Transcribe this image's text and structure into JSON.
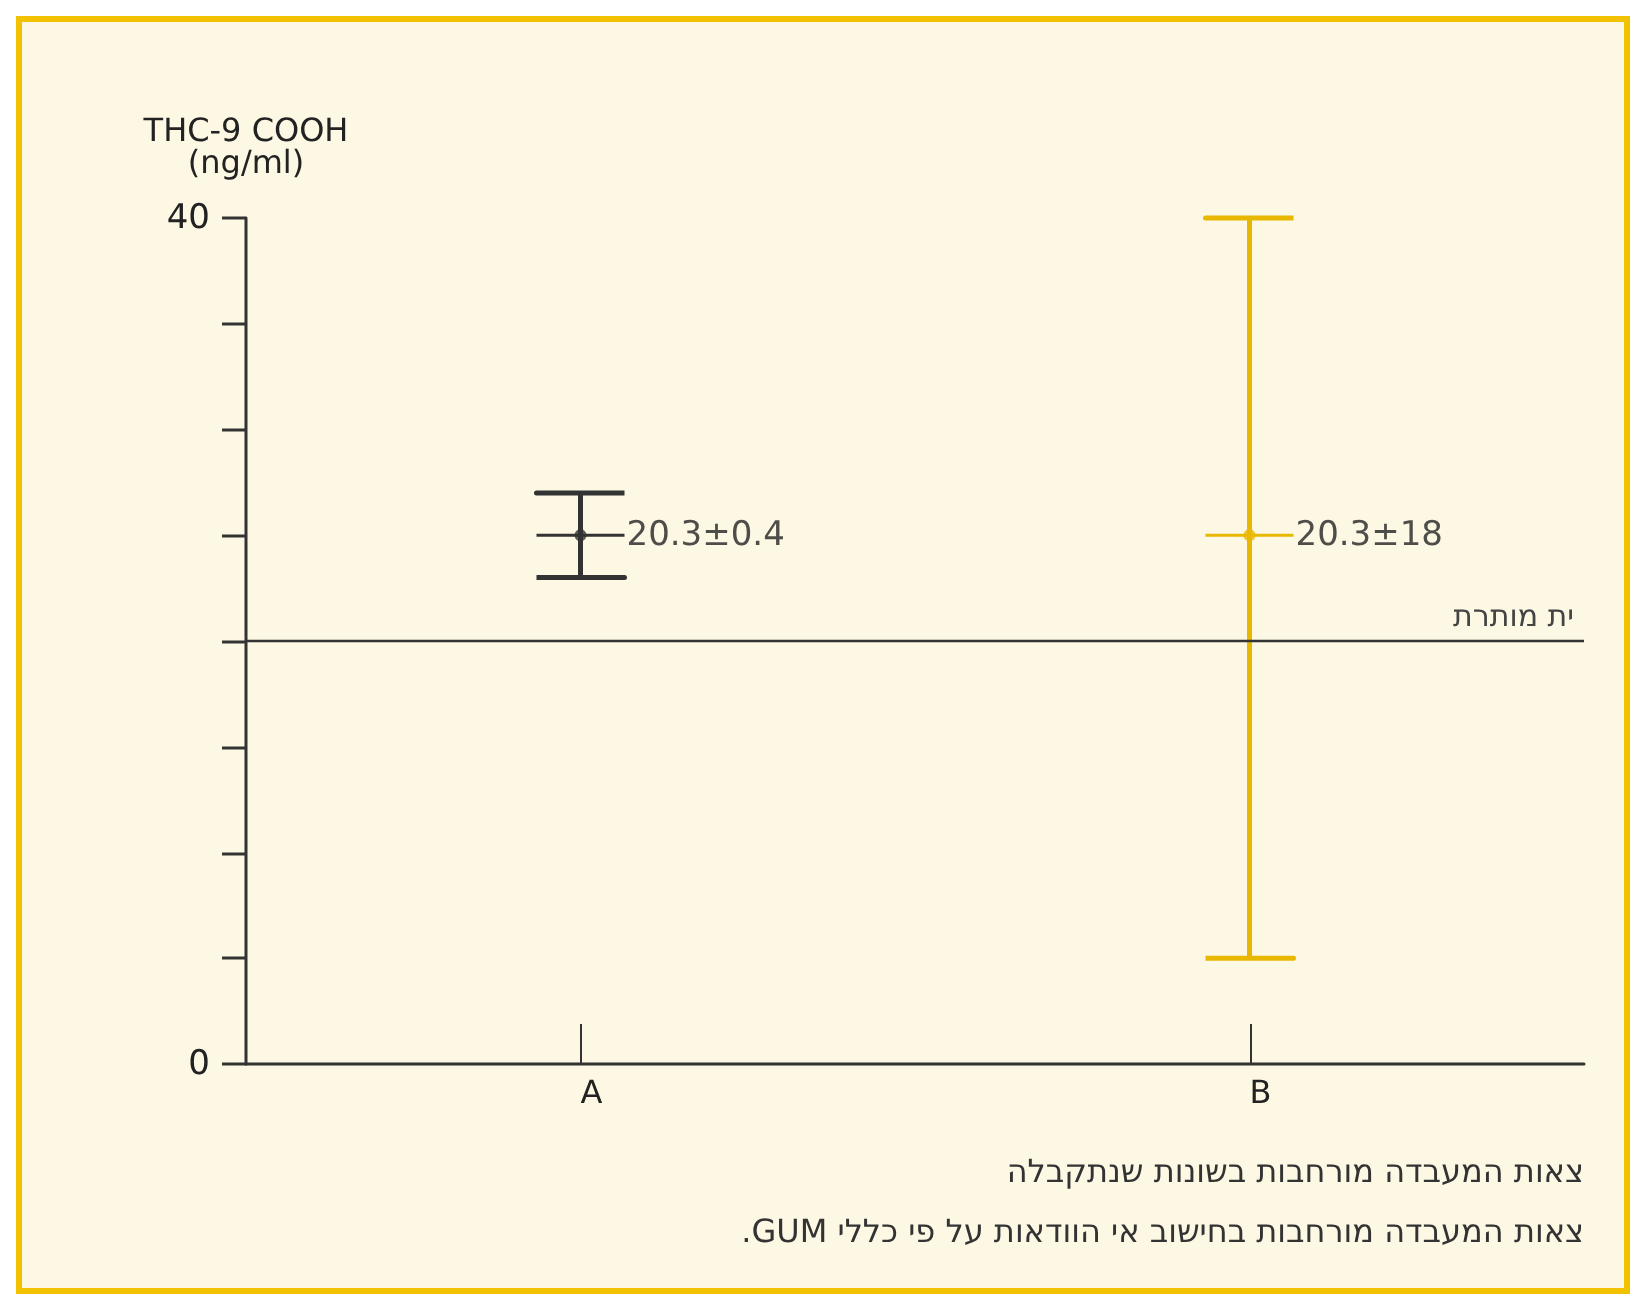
{
  "chart_data": {
    "type": "scatter",
    "ylabel": "THC-9 COOH\n(ng/ml)",
    "categories": [
      "A",
      "B"
    ],
    "values": [
      25,
      25
    ],
    "errors": [
      [
        23,
        27
      ],
      [
        5,
        40
      ]
    ],
    "colors": [
      "#333333",
      "#e8b800"
    ],
    "value_labels": [
      "20.3±0.4",
      "20.3±18"
    ],
    "ylim": [
      0,
      40
    ],
    "yticks": [
      0,
      {
        "value": 5,
        "label": null
      },
      {
        "value": 10,
        "label": null
      },
      {
        "value": 15,
        "label": null
      },
      {
        "value": 20,
        "label": null
      },
      {
        "value": 25,
        "label": null
      },
      {
        "value": 30,
        "label": null
      },
      {
        "value": 35,
        "label": null
      },
      40
    ],
    "ref_lines": [
      {
        "axis": "y",
        "value": 20,
        "label": "ית מותרת",
        "color": "#333333"
      }
    ],
    "annotations": [
      "צאות המעבדה מורחבות בשונות שנתקבלה",
      "צאות המעבדה מורחבות בחישוב אי הוודאות על פי כללי GUM."
    ],
    "grid": false
  }
}
